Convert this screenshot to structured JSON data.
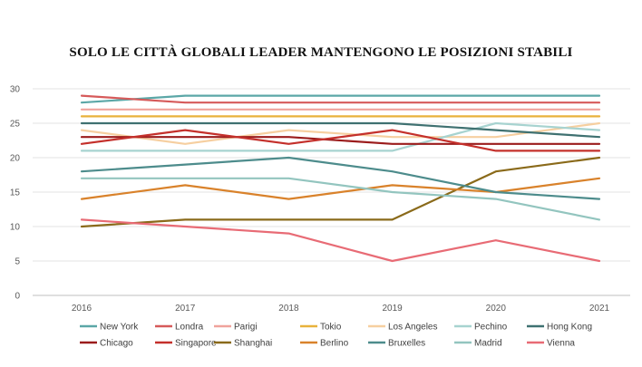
{
  "chart_data": {
    "type": "line",
    "title": "SOLO  LE CITTÀ GLOBALI  LEADER  MANTENGONO LE  POSIZIONI STABILI",
    "xlabel": "",
    "ylabel": "",
    "x": [
      "2016",
      "2017",
      "2018",
      "2019",
      "2020",
      "2021"
    ],
    "ylim": [
      0,
      30
    ],
    "yticks": [
      0,
      5,
      10,
      15,
      20,
      25,
      30
    ],
    "grid": true,
    "legend_position": "bottom",
    "series": [
      {
        "name": "New York",
        "color": "#5ba7a7",
        "values": [
          28,
          29,
          29,
          29,
          29,
          29
        ]
      },
      {
        "name": "Londra",
        "color": "#d65a5a",
        "values": [
          29,
          28,
          28,
          28,
          28,
          28
        ]
      },
      {
        "name": "Parigi",
        "color": "#f0a39c",
        "values": [
          27,
          27,
          27,
          27,
          27,
          27
        ]
      },
      {
        "name": "Tokio",
        "color": "#e8b23c",
        "values": [
          26,
          26,
          26,
          26,
          26,
          26
        ]
      },
      {
        "name": "Los Angeles",
        "color": "#f6cfa0",
        "values": [
          24,
          22,
          24,
          23,
          23,
          25
        ]
      },
      {
        "name": "Pechino",
        "color": "#a7d3d0",
        "values": [
          21,
          21,
          21,
          21,
          25,
          24
        ]
      },
      {
        "name": "Hong Kong",
        "color": "#3f7171",
        "values": [
          25,
          25,
          25,
          25,
          24,
          23
        ]
      },
      {
        "name": "Chicago",
        "color": "#9b1c1c",
        "values": [
          23,
          23,
          23,
          22,
          22,
          22
        ]
      },
      {
        "name": "Singapore",
        "color": "#c4302b",
        "values": [
          22,
          24,
          22,
          24,
          21,
          21
        ]
      },
      {
        "name": "Shanghai",
        "color": "#8a6a1a",
        "values": [
          10,
          11,
          11,
          11,
          18,
          20
        ]
      },
      {
        "name": "Berlino",
        "color": "#d9822b",
        "values": [
          14,
          16,
          14,
          16,
          15,
          17
        ]
      },
      {
        "name": "Bruxelles",
        "color": "#4d8c8c",
        "values": [
          18,
          19,
          20,
          18,
          15,
          14
        ]
      },
      {
        "name": "Madrid",
        "color": "#93c5bf",
        "values": [
          17,
          17,
          17,
          15,
          14,
          11
        ]
      },
      {
        "name": "Vienna",
        "color": "#e86b75",
        "values": [
          11,
          10,
          9,
          5,
          8,
          5
        ]
      }
    ]
  }
}
